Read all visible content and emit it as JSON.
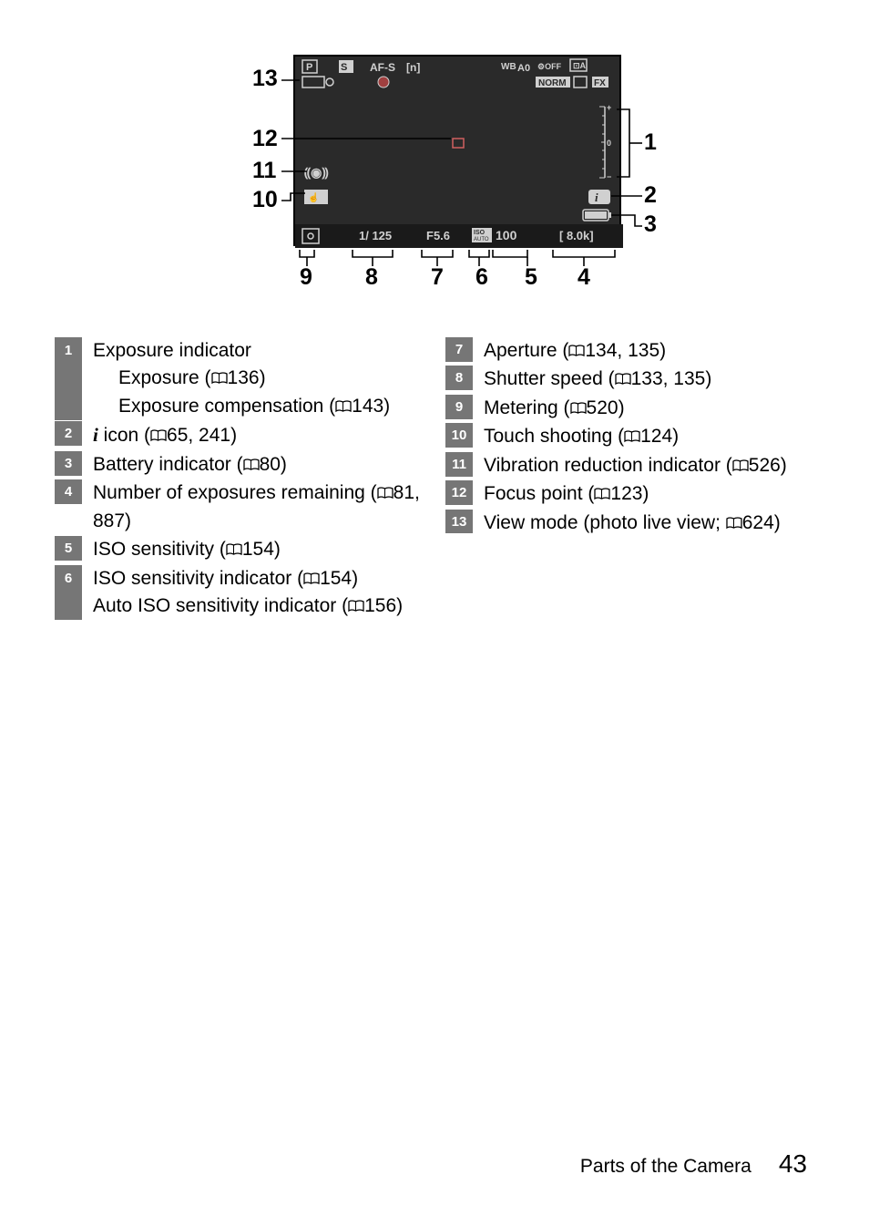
{
  "footer": {
    "section": "Parts of the Camera",
    "page": "43"
  },
  "diagram": {
    "top_icons": [
      "P",
      "S",
      "AF-S",
      "[n]",
      "WB A0",
      "OFF",
      "A"
    ],
    "top_icons2": [
      "NORM",
      "FX"
    ],
    "shutter": "1/ 125",
    "aperture": "F5.6",
    "iso_label": "ISO",
    "iso": "100",
    "remaining": "[ 8.0k]",
    "callouts": {
      "n13": "13",
      "n12": "12",
      "n11": "11",
      "n10": "10",
      "n9": "9",
      "n8": "8",
      "n7": "7",
      "n6": "6",
      "n5": "5",
      "n4": "4",
      "n1": "1",
      "n2": "2",
      "n3": "3"
    }
  },
  "legend_left": [
    {
      "n": "1",
      "lines": [
        "Exposure indicator"
      ],
      "subs": [
        {
          "t": "Exposure (",
          "r": "136)"
        },
        {
          "t": "Exposure compensation (",
          "r": "143)"
        }
      ]
    },
    {
      "n": "2",
      "lines": [
        {
          "pre": "",
          "icon": "i",
          "post": " icon (",
          "r": "65, 241)"
        }
      ]
    },
    {
      "n": "3",
      "lines": [
        {
          "t": "Battery indicator (",
          "r": "80)"
        }
      ]
    },
    {
      "n": "4",
      "lines": [
        {
          "t": "Number of exposures remaining (",
          "r": "81, 887)"
        }
      ]
    },
    {
      "n": "5",
      "lines": [
        {
          "t": "ISO sensitivity (",
          "r": "154)"
        }
      ]
    },
    {
      "n": "6",
      "lines": [
        {
          "t": "ISO sensitivity indicator (",
          "r": "154)"
        },
        {
          "t": "Auto ISO sensitivity indicator (",
          "r": "156)"
        }
      ]
    }
  ],
  "legend_right": [
    {
      "n": "7",
      "lines": [
        {
          "t": "Aperture (",
          "r": "134, 135)"
        }
      ]
    },
    {
      "n": "8",
      "lines": [
        {
          "t": "Shutter speed (",
          "r": "133, 135)"
        }
      ]
    },
    {
      "n": "9",
      "lines": [
        {
          "t": "Metering (",
          "r": "520)"
        }
      ]
    },
    {
      "n": "10",
      "lines": [
        {
          "t": "Touch shooting (",
          "r": "124)"
        }
      ]
    },
    {
      "n": "11",
      "lines": [
        {
          "t": "Vibration reduction indicator (",
          "r": "526)"
        }
      ]
    },
    {
      "n": "12",
      "lines": [
        {
          "t": "Focus point (",
          "r": "123)"
        }
      ]
    },
    {
      "n": "13",
      "lines": [
        {
          "t": "View mode (photo live view; ",
          "r": "624)"
        }
      ]
    }
  ]
}
